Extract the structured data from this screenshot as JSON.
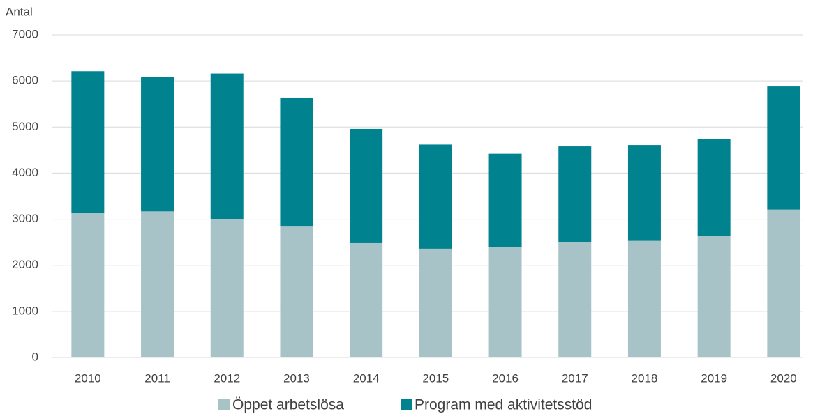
{
  "chart_data": {
    "type": "stacked_bar",
    "y_axis_label": "Antal",
    "categories": [
      "2010",
      "2011",
      "2012",
      "2013",
      "2014",
      "2015",
      "2016",
      "2017",
      "2018",
      "2019",
      "2020"
    ],
    "series": [
      {
        "name": "Öppet arbetslösa",
        "color": "#a8c3c7",
        "values": [
          3140,
          3170,
          3000,
          2840,
          2480,
          2360,
          2400,
          2500,
          2530,
          2640,
          3210
        ]
      },
      {
        "name": "Program med aktivitetsstöd",
        "color": "#00838f",
        "values": [
          3070,
          2910,
          3160,
          2800,
          2480,
          2260,
          2020,
          2080,
          2080,
          2100,
          2670
        ]
      }
    ],
    "ylim": [
      0,
      7000
    ],
    "yticks": [
      0,
      1000,
      2000,
      3000,
      4000,
      5000,
      6000,
      7000
    ],
    "grid": true,
    "legend": "bottom"
  }
}
